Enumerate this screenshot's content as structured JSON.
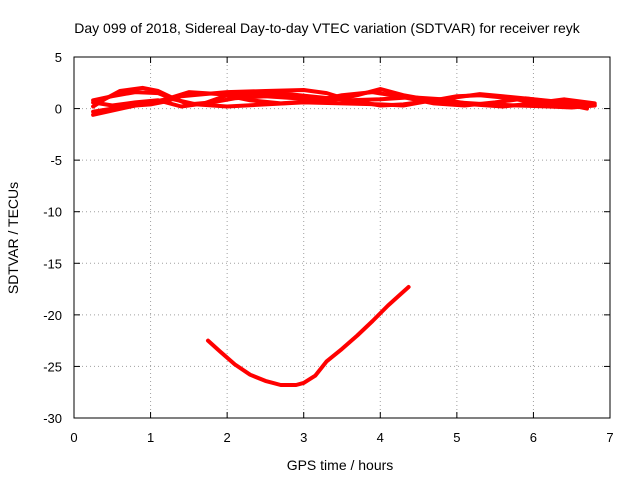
{
  "chart_data": {
    "type": "line",
    "title": "Day 099 of 2018, Sidereal Day-to-day VTEC variation (SDTVAR) for receiver reyk",
    "xlabel": "GPS time / hours",
    "ylabel": "SDTVAR / TECUs",
    "xlim": [
      0,
      7
    ],
    "ylim": [
      -30,
      5
    ],
    "xticks": [
      0,
      1,
      2,
      3,
      4,
      5,
      6,
      7
    ],
    "yticks": [
      5,
      0,
      -5,
      -10,
      -15,
      -20,
      -25,
      -30
    ],
    "grid": true,
    "colors": {
      "series": "#ff0000",
      "grid": "#a0a0a0",
      "axis": "#000000"
    },
    "series": [
      {
        "x": [
          0.25,
          0.5,
          0.8,
          1.0,
          1.2,
          1.4,
          1.7,
          2.0,
          2.5,
          3.0,
          3.3,
          3.6,
          4.0,
          4.3,
          4.7,
          5.0,
          5.3,
          5.7,
          6.0,
          6.3,
          6.6,
          6.8
        ],
        "values": [
          -0.3,
          0.0,
          0.3,
          0.4,
          0.7,
          1.2,
          1.4,
          1.6,
          1.7,
          1.8,
          1.5,
          0.8,
          0.3,
          0.4,
          0.8,
          1.2,
          1.3,
          1.0,
          0.6,
          0.5,
          0.4,
          0.3
        ]
      },
      {
        "x": [
          0.25,
          0.5,
          0.8,
          1.1,
          1.3,
          1.6,
          2.0,
          2.5,
          3.0,
          3.5,
          4.0,
          4.3,
          4.6,
          4.9,
          5.3,
          5.6,
          6.0,
          6.4,
          6.8
        ],
        "values": [
          0.8,
          1.2,
          1.6,
          1.5,
          0.9,
          0.4,
          0.2,
          0.4,
          0.6,
          0.5,
          0.4,
          0.3,
          0.7,
          1.0,
          1.4,
          1.2,
          0.9,
          0.6,
          0.4
        ]
      },
      {
        "x": [
          0.25,
          0.4,
          0.6,
          0.9,
          1.1,
          1.3,
          1.5,
          1.8,
          2.1,
          2.5,
          2.9,
          3.3,
          3.7,
          4.0,
          4.3,
          4.6,
          5.0,
          5.4,
          5.8,
          6.2,
          6.5,
          6.8
        ],
        "values": [
          0.2,
          0.9,
          1.7,
          2.0,
          1.7,
          1.0,
          0.4,
          0.6,
          1.0,
          1.2,
          1.0,
          0.7,
          1.3,
          1.9,
          1.3,
          0.9,
          0.6,
          0.4,
          0.3,
          0.2,
          0.1,
          0.3
        ]
      },
      {
        "x": [
          0.25,
          0.5,
          0.8,
          1.1,
          1.4,
          1.7,
          2.0,
          2.4,
          2.8,
          3.2,
          3.6,
          4.0,
          4.4,
          4.8,
          5.2,
          5.6,
          6.0,
          6.4,
          6.8
        ],
        "values": [
          0.6,
          0.3,
          0.6,
          0.8,
          0.2,
          0.5,
          1.3,
          1.5,
          1.4,
          1.1,
          0.8,
          0.9,
          1.1,
          0.9,
          0.4,
          0.2,
          0.5,
          0.9,
          0.5
        ]
      },
      {
        "x": [
          0.25,
          0.5,
          0.8,
          1.2,
          1.5,
          1.9,
          2.3,
          2.7,
          3.1,
          3.5,
          3.9,
          4.3,
          4.7,
          5.1,
          5.5,
          5.9,
          6.3,
          6.7
        ],
        "values": [
          -0.6,
          -0.2,
          0.3,
          0.9,
          1.6,
          1.4,
          0.8,
          0.5,
          0.7,
          1.3,
          1.6,
          1.1,
          0.5,
          0.3,
          0.6,
          1.0,
          0.6,
          0.0
        ]
      },
      {
        "x": [
          1.75,
          1.9,
          2.1,
          2.3,
          2.5,
          2.7,
          2.9,
          3.0,
          3.15,
          3.3,
          3.5,
          3.7,
          3.9,
          4.1,
          4.25,
          4.37
        ],
        "values": [
          -22.5,
          -23.5,
          -24.8,
          -25.8,
          -26.4,
          -26.8,
          -26.8,
          -26.6,
          -25.9,
          -24.5,
          -23.3,
          -22.0,
          -20.6,
          -19.1,
          -18.1,
          -17.3
        ]
      }
    ]
  }
}
